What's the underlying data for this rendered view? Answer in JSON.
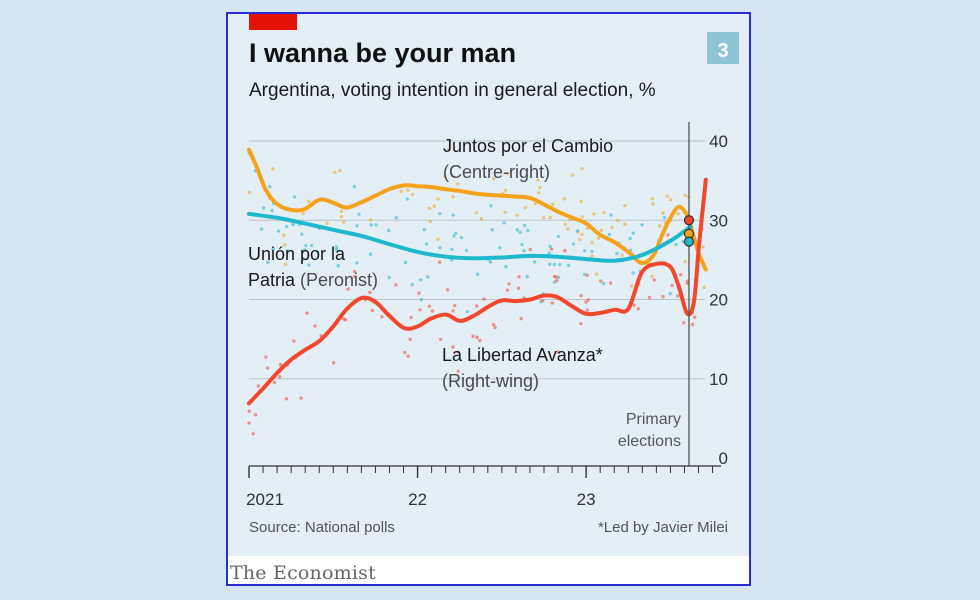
{
  "header": {
    "title": "I wanna be your man",
    "badge": "3"
  },
  "brand": {
    "name": "The Economist",
    "accent": "#e3120b"
  },
  "footer": {
    "source": "Source: National polls",
    "footnote": "*Led by Javier Milei"
  },
  "chart_data": {
    "type": "line",
    "title": "I wanna be your man",
    "subtitle": "Argentina, voting intention in general election, %",
    "xlabel": "",
    "ylabel": "",
    "ylim": [
      0,
      40
    ],
    "yticks": [
      0,
      10,
      20,
      30,
      40
    ],
    "xlim": [
      2021.0,
      2023.8
    ],
    "xtick_labels": [
      {
        "x": 2021.0,
        "label": "2021"
      },
      {
        "x": 2022.0,
        "label": "22"
      },
      {
        "x": 2023.0,
        "label": "23"
      }
    ],
    "annotation": {
      "x": 2023.61,
      "lines": [
        "Primary",
        "elections"
      ]
    },
    "series": [
      {
        "key": "jxc",
        "name": "Juntos por el Cambio",
        "note": "(Centre-right)",
        "color": "#f5a31a",
        "x": [
          2021.0,
          2021.05,
          2021.1,
          2021.17,
          2021.25,
          2021.33,
          2021.42,
          2021.5,
          2021.58,
          2021.67,
          2021.75,
          2021.83,
          2021.92,
          2022.0,
          2022.08,
          2022.17,
          2022.25,
          2022.33,
          2022.42,
          2022.5,
          2022.58,
          2022.67,
          2022.75,
          2022.83,
          2022.92,
          2023.0,
          2023.08,
          2023.17,
          2023.25,
          2023.33,
          2023.4,
          2023.45,
          2023.5,
          2023.55,
          2023.6,
          2023.63,
          2023.67,
          2023.71
        ],
        "y": [
          38.9,
          36.5,
          33.8,
          32.0,
          31.3,
          31.4,
          32.6,
          32.2,
          31.6,
          32.3,
          33.1,
          33.9,
          34.4,
          34.3,
          34.2,
          33.9,
          33.7,
          33.4,
          33.2,
          33.1,
          33.0,
          32.8,
          32.0,
          31.1,
          30.3,
          29.6,
          28.2,
          27.2,
          26.0,
          24.6,
          25.6,
          28.1,
          30.3,
          31.7,
          30.6,
          28.5,
          25.7,
          23.8
        ]
      },
      {
        "key": "uxp",
        "name": "Unión por la Patria",
        "note": "(Peronist)",
        "color": "#1fb8cc",
        "x": [
          2021.0,
          2021.17,
          2021.33,
          2021.5,
          2021.67,
          2021.83,
          2022.0,
          2022.17,
          2022.33,
          2022.5,
          2022.67,
          2022.83,
          2023.0,
          2023.17,
          2023.33,
          2023.5,
          2023.62
        ],
        "y": [
          30.8,
          30.3,
          29.6,
          28.8,
          28.0,
          27.0,
          26.0,
          25.4,
          25.2,
          25.3,
          25.5,
          25.4,
          25.1,
          24.9,
          25.6,
          27.4,
          29.2
        ]
      },
      {
        "key": "lla",
        "name": "La Libertad Avanza*",
        "note": "(Right-wing)",
        "color": "#f2472c",
        "x": [
          2021.0,
          2021.08,
          2021.17,
          2021.25,
          2021.33,
          2021.42,
          2021.5,
          2021.58,
          2021.67,
          2021.75,
          2021.83,
          2021.92,
          2022.0,
          2022.08,
          2022.17,
          2022.25,
          2022.33,
          2022.42,
          2022.5,
          2022.58,
          2022.67,
          2022.75,
          2022.83,
          2022.92,
          2023.0,
          2023.08,
          2023.17,
          2023.25,
          2023.33,
          2023.42,
          2023.5,
          2023.55,
          2023.6,
          2023.64,
          2023.67,
          2023.71
        ],
        "y": [
          6.9,
          8.7,
          10.8,
          12.4,
          13.6,
          14.8,
          16.6,
          18.8,
          20.2,
          19.7,
          18.0,
          16.4,
          16.6,
          17.6,
          18.1,
          17.3,
          17.9,
          19.1,
          19.9,
          19.8,
          20.0,
          20.5,
          20.3,
          19.1,
          18.2,
          18.3,
          18.7,
          18.8,
          23.4,
          24.5,
          24.1,
          21.6,
          18.2,
          19.8,
          27.0,
          35.1
        ]
      }
    ],
    "primary_results": [
      {
        "key": "jxc",
        "value": 28.3
      },
      {
        "key": "uxp",
        "value": 27.3
      },
      {
        "key": "lla",
        "value": 30.0
      }
    ]
  }
}
